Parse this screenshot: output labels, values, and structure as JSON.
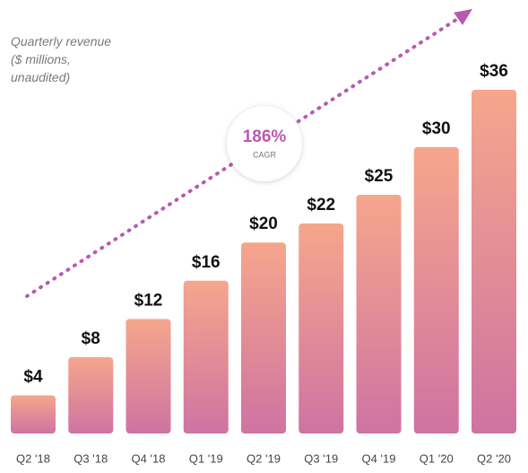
{
  "chart_data": {
    "type": "bar",
    "title": "Quarterly revenue ($ millions, unaudited)",
    "categories": [
      "Q2 '18",
      "Q3 '18",
      "Q4 '18",
      "Q1 '19",
      "Q2 '19",
      "Q3 '19",
      "Q4 '19",
      "Q1 '20",
      "Q2 '20"
    ],
    "values": [
      4,
      8,
      12,
      16,
      20,
      22,
      25,
      30,
      36
    ],
    "value_labels": [
      "$4",
      "$8",
      "$12",
      "$16",
      "$20",
      "$22",
      "$25",
      "$30",
      "$36"
    ],
    "ylim": [
      0,
      36
    ],
    "color_top": "#f6a68c",
    "color_bottom": "#cf73a2",
    "annotations": [
      "186%",
      "CAGR"
    ]
  }
}
